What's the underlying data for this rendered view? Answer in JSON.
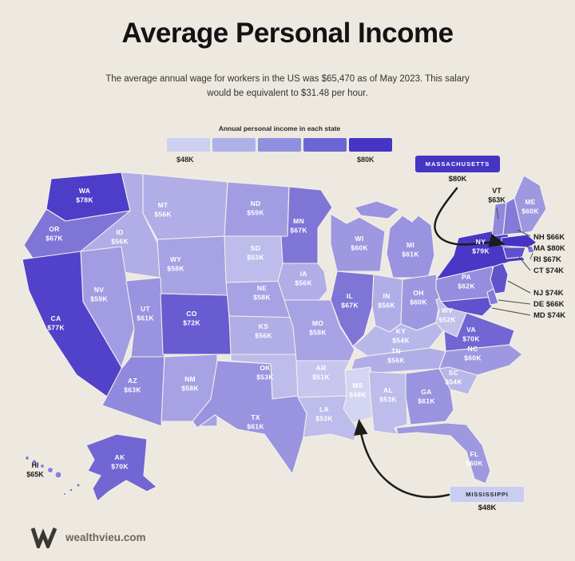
{
  "header": {
    "title": "Average Personal Income",
    "subtitle": "The average annual wage for workers in the US was $65,470 as of May 2023. This salary would be equivalent to $31.48 per hour."
  },
  "legend": {
    "title": "Annual personal income in each state",
    "min_label": "$48K",
    "max_label": "$80K",
    "colors": [
      "#CDD0EF",
      "#ADB1E7",
      "#8F90DF",
      "#6C66D3",
      "#4634C5"
    ]
  },
  "color_scale": {
    "min_value": 48,
    "max_value": 80,
    "min_color": "#D3D5F2",
    "max_color": "#4533C5"
  },
  "callouts": {
    "massachusetts": {
      "label": "MASSACHUSETTS",
      "value": "$80K",
      "badge_color": "#4634C5"
    },
    "mississippi": {
      "label": "MISSISSIPPI",
      "value": "$48K",
      "badge_color": "#C9CDF1"
    }
  },
  "states": {
    "WA": {
      "label": "WA",
      "value_label": "$78K",
      "value": 78
    },
    "OR": {
      "label": "OR",
      "value_label": "$67K",
      "value": 67
    },
    "CA": {
      "label": "CA",
      "value_label": "$77K",
      "value": 77
    },
    "NV": {
      "label": "NV",
      "value_label": "$59K",
      "value": 59
    },
    "ID": {
      "label": "ID",
      "value_label": "$56K",
      "value": 56
    },
    "MT": {
      "label": "MT",
      "value_label": "$56K",
      "value": 56
    },
    "WY": {
      "label": "WY",
      "value_label": "$58K",
      "value": 58
    },
    "UT": {
      "label": "UT",
      "value_label": "$61K",
      "value": 61
    },
    "CO": {
      "label": "CO",
      "value_label": "$72K",
      "value": 72
    },
    "AZ": {
      "label": "AZ",
      "value_label": "$63K",
      "value": 63
    },
    "NM": {
      "label": "NM",
      "value_label": "$58K",
      "value": 58
    },
    "ND": {
      "label": "ND",
      "value_label": "$59K",
      "value": 59
    },
    "SD": {
      "label": "SD",
      "value_label": "$53K",
      "value": 53
    },
    "NE": {
      "label": "NE",
      "value_label": "$58K",
      "value": 58
    },
    "KS": {
      "label": "KS",
      "value_label": "$56K",
      "value": 56
    },
    "OK": {
      "label": "OK",
      "value_label": "$53K",
      "value": 53
    },
    "TX": {
      "label": "TX",
      "value_label": "$61K",
      "value": 61
    },
    "MN": {
      "label": "MN",
      "value_label": "$67K",
      "value": 67
    },
    "IA": {
      "label": "IA",
      "value_label": "$56K",
      "value": 56
    },
    "MO": {
      "label": "MO",
      "value_label": "$58K",
      "value": 58
    },
    "AR": {
      "label": "AR",
      "value_label": "$51K",
      "value": 51
    },
    "LA": {
      "label": "LA",
      "value_label": "$53K",
      "value": 53
    },
    "MS": {
      "label": "MS",
      "value_label": "$48K",
      "value": 48
    },
    "WI": {
      "label": "WI",
      "value_label": "$60K",
      "value": 60
    },
    "IL": {
      "label": "IL",
      "value_label": "$67K",
      "value": 67
    },
    "IN": {
      "label": "IN",
      "value_label": "$56K",
      "value": 56
    },
    "MI": {
      "label": "MI",
      "value_label": "$61K",
      "value": 61
    },
    "OH": {
      "label": "OH",
      "value_label": "$60K",
      "value": 60
    },
    "KY": {
      "label": "KY",
      "value_label": "$54K",
      "value": 54
    },
    "TN": {
      "label": "TN",
      "value_label": "$56K",
      "value": 56
    },
    "WV": {
      "label": "WV",
      "value_label": "$52K",
      "value": 52
    },
    "VA": {
      "label": "VA",
      "value_label": "$70K",
      "value": 70
    },
    "NC": {
      "label": "NC",
      "value_label": "$60K",
      "value": 60
    },
    "SC": {
      "label": "SC",
      "value_label": "$54K",
      "value": 54
    },
    "GA": {
      "label": "GA",
      "value_label": "$61K",
      "value": 61
    },
    "AL": {
      "label": "AL",
      "value_label": "$53K",
      "value": 53
    },
    "FL": {
      "label": "FL",
      "value_label": "$60K",
      "value": 60
    },
    "PA": {
      "label": "PA",
      "value_label": "$62K",
      "value": 62
    },
    "NY": {
      "label": "NY",
      "value_label": "$79K",
      "value": 79
    },
    "VT": {
      "label": "VT",
      "value_label": "$63K",
      "value": 63
    },
    "NH": {
      "label": "NH",
      "value_label": "$66K",
      "value": 66
    },
    "ME": {
      "label": "ME",
      "value_label": "$60K",
      "value": 60
    },
    "MA": {
      "label": "MA",
      "value_label": "$80K",
      "value": 80
    },
    "RI": {
      "label": "RI",
      "value_label": "$67K",
      "value": 67
    },
    "CT": {
      "label": "CT",
      "value_label": "$74K",
      "value": 74
    },
    "NJ": {
      "label": "NJ",
      "value_label": "$74K",
      "value": 74
    },
    "DE": {
      "label": "DE",
      "value_label": "$66K",
      "value": 66
    },
    "MD": {
      "label": "MD",
      "value_label": "$74K",
      "value": 74
    },
    "AK": {
      "label": "AK",
      "value_label": "$70K",
      "value": 70
    },
    "HI": {
      "label": "HI",
      "value_label": "$65K",
      "value": 65
    }
  },
  "chart_data": {
    "type": "heatmap",
    "subtype": "us-choropleth",
    "title": "Average Personal Income",
    "legend_title": "Annual personal income in each state",
    "value_range_k_usd": [
      48,
      80
    ],
    "categories": [
      "WA",
      "OR",
      "CA",
      "NV",
      "ID",
      "MT",
      "WY",
      "UT",
      "CO",
      "AZ",
      "NM",
      "ND",
      "SD",
      "NE",
      "KS",
      "OK",
      "TX",
      "MN",
      "IA",
      "MO",
      "AR",
      "LA",
      "MS",
      "WI",
      "IL",
      "IN",
      "MI",
      "OH",
      "KY",
      "TN",
      "WV",
      "VA",
      "NC",
      "SC",
      "GA",
      "AL",
      "FL",
      "PA",
      "NY",
      "VT",
      "NH",
      "ME",
      "MA",
      "RI",
      "CT",
      "NJ",
      "DE",
      "MD",
      "AK",
      "HI"
    ],
    "values": [
      78,
      67,
      77,
      59,
      56,
      56,
      58,
      61,
      72,
      63,
      58,
      59,
      53,
      58,
      56,
      53,
      61,
      67,
      56,
      58,
      51,
      53,
      48,
      60,
      67,
      56,
      61,
      60,
      54,
      56,
      52,
      70,
      60,
      54,
      61,
      53,
      60,
      62,
      79,
      63,
      66,
      60,
      80,
      67,
      74,
      74,
      66,
      74,
      70,
      65
    ]
  },
  "footer": {
    "site": "wealthvieu.com"
  }
}
